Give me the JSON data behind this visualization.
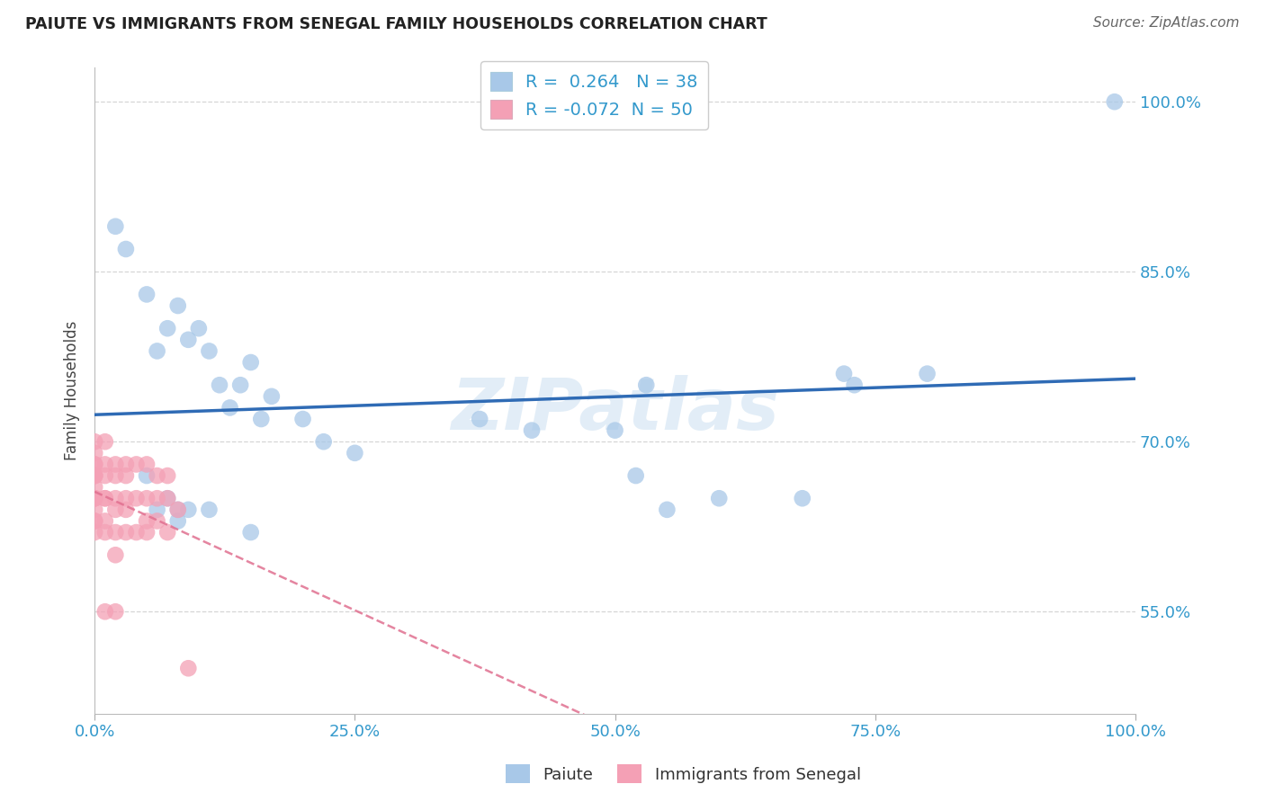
{
  "title": "PAIUTE VS IMMIGRANTS FROM SENEGAL FAMILY HOUSEHOLDS CORRELATION CHART",
  "source": "Source: ZipAtlas.com",
  "ylabel": "Family Households",
  "xlim": [
    0.0,
    100.0
  ],
  "ylim": [
    46.0,
    103.0
  ],
  "yticks": [
    55.0,
    70.0,
    85.0,
    100.0
  ],
  "xticks": [
    0.0,
    25.0,
    50.0,
    75.0,
    100.0
  ],
  "x_tick_labels": [
    "0.0%",
    "25.0%",
    "50.0%",
    "75.0%",
    "100.0%"
  ],
  "y_tick_labels": [
    "55.0%",
    "70.0%",
    "85.0%",
    "100.0%"
  ],
  "paiute_R": 0.264,
  "paiute_N": 38,
  "senegal_R": -0.072,
  "senegal_N": 50,
  "paiute_color": "#A8C8E8",
  "senegal_color": "#F4A0B5",
  "paiute_line_color": "#2F6BB5",
  "senegal_line_color": "#E07090",
  "background_color": "#FFFFFF",
  "grid_color": "#CCCCCC",
  "watermark": "ZIPatlas",
  "paiute_x": [
    2,
    3,
    5,
    6,
    7,
    8,
    9,
    10,
    11,
    12,
    13,
    14,
    15,
    16,
    17,
    20,
    22,
    25,
    37,
    42,
    50,
    52,
    53,
    55,
    60,
    68,
    72,
    73,
    80,
    98,
    5,
    6,
    7,
    8,
    9,
    11,
    15,
    8
  ],
  "paiute_y": [
    89,
    87,
    83,
    78,
    80,
    82,
    79,
    80,
    78,
    75,
    73,
    75,
    77,
    72,
    74,
    72,
    70,
    69,
    72,
    71,
    71,
    67,
    75,
    64,
    65,
    65,
    76,
    75,
    76,
    100,
    67,
    64,
    65,
    64,
    64,
    64,
    62,
    63
  ],
  "senegal_x": [
    0,
    0,
    0,
    0,
    0,
    0,
    0,
    0,
    0,
    0,
    0,
    0,
    0,
    0,
    0,
    1,
    1,
    1,
    1,
    1,
    1,
    1,
    1,
    2,
    2,
    2,
    2,
    2,
    2,
    2,
    3,
    3,
    3,
    3,
    3,
    4,
    4,
    4,
    5,
    5,
    5,
    5,
    6,
    6,
    6,
    7,
    7,
    7,
    8,
    9
  ],
  "senegal_y": [
    70,
    69,
    68,
    68,
    67,
    67,
    67,
    66,
    65,
    65,
    65,
    64,
    63,
    63,
    62,
    70,
    68,
    67,
    65,
    65,
    63,
    62,
    55,
    68,
    67,
    65,
    64,
    62,
    60,
    55,
    68,
    67,
    65,
    64,
    62,
    68,
    65,
    62,
    68,
    65,
    63,
    62,
    67,
    65,
    63,
    67,
    65,
    62,
    64,
    50
  ]
}
